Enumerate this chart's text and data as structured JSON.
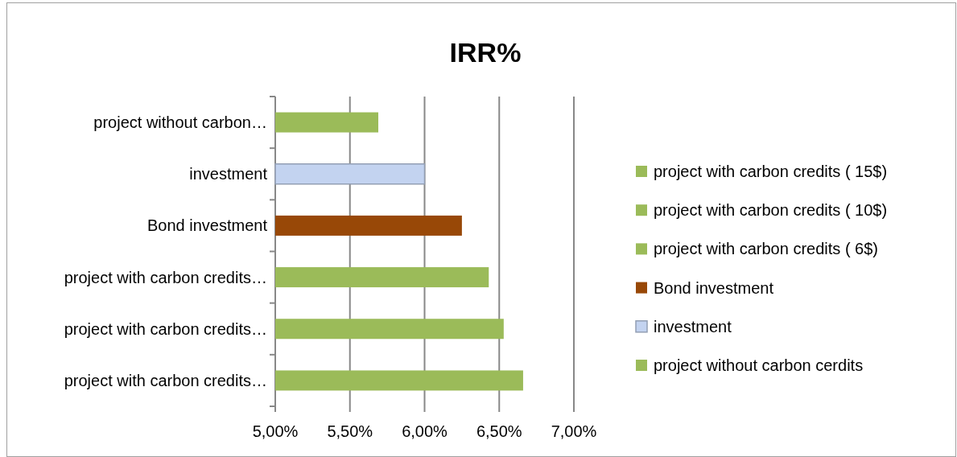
{
  "chart_data": {
    "type": "bar",
    "orientation": "horizontal",
    "title": "IRR%",
    "categories": [
      "project without carbon…",
      "investment",
      "Bond investment",
      "project with carbon credits…",
      "project with carbon credits…",
      "project with carbon credits…"
    ],
    "series": [
      {
        "name": "project with carbon credits ( 15$)",
        "color": "#9bbb59",
        "values": [
          null,
          null,
          null,
          null,
          null,
          6.66
        ]
      },
      {
        "name": "project with carbon credits ( 10$)",
        "color": "#9bbb59",
        "values": [
          null,
          null,
          null,
          null,
          6.53,
          null
        ]
      },
      {
        "name": "project with carbon credits ( 6$)",
        "color": "#9bbb59",
        "values": [
          null,
          null,
          null,
          6.43,
          null,
          null
        ]
      },
      {
        "name": "Bond investment",
        "color": "#984807",
        "values": [
          null,
          null,
          6.25,
          null,
          null,
          null
        ]
      },
      {
        "name": "investment",
        "color": "#c3d3f0",
        "values": [
          null,
          6.0,
          null,
          null,
          null,
          null
        ]
      },
      {
        "name": "project without carbon cerdits",
        "color": "#9bbb59",
        "values": [
          5.69,
          null,
          null,
          null,
          null,
          null
        ]
      }
    ],
    "xlim": [
      5,
      7
    ],
    "xticks": [
      {
        "value": 5,
        "label": "5,00%"
      },
      {
        "value": 5.5,
        "label": "5,50%"
      },
      {
        "value": 6,
        "label": "6,00%"
      },
      {
        "value": 6.5,
        "label": "6,50%"
      },
      {
        "value": 7,
        "label": "7,00%"
      }
    ],
    "grid": "x",
    "legend": "right"
  }
}
